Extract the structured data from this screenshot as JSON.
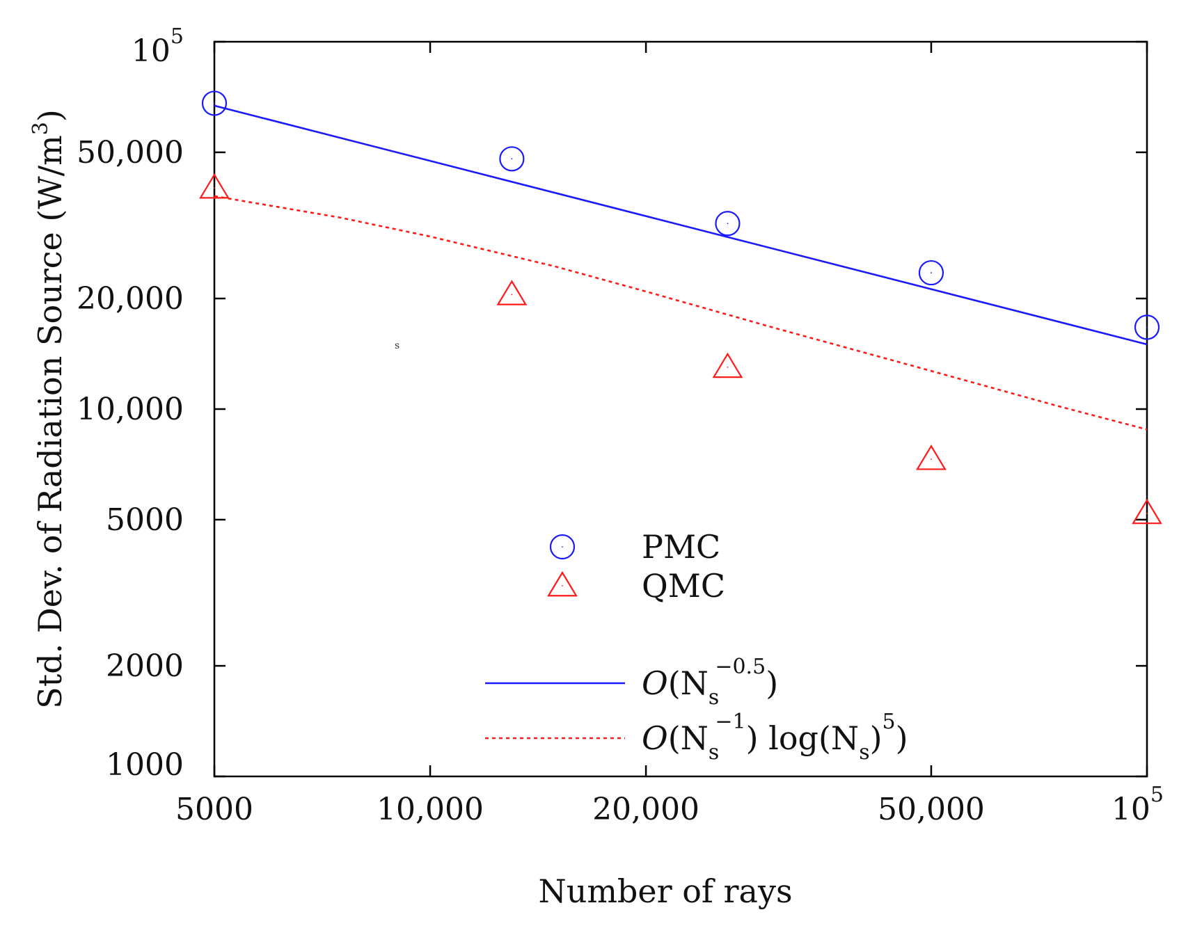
{
  "chart_data": {
    "type": "scatter",
    "title": "",
    "xlabel": "Number of rays",
    "ylabel": "Std. Dev. of Radiation Source (W/m",
    "ylabel_sup": "3",
    "ylabel_end": ")",
    "xscale": "log",
    "yscale": "log",
    "xlim": [
      5000,
      100000
    ],
    "ylim": [
      1000,
      100000
    ],
    "x_ticks": [
      {
        "value": 5000,
        "label": "5000",
        "sup": ""
      },
      {
        "value": 10000,
        "label": "10,000",
        "sup": ""
      },
      {
        "value": 20000,
        "label": "20,000",
        "sup": ""
      },
      {
        "value": 50000,
        "label": "50,000",
        "sup": ""
      },
      {
        "value": 100000,
        "label": "10",
        "sup": "5"
      }
    ],
    "y_ticks": [
      {
        "value": 1000,
        "label": "1000",
        "sup": ""
      },
      {
        "value": 2000,
        "label": "2000",
        "sup": ""
      },
      {
        "value": 5000,
        "label": "5000",
        "sup": ""
      },
      {
        "value": 10000,
        "label": "10,000",
        "sup": ""
      },
      {
        "value": 20000,
        "label": "20,000",
        "sup": ""
      },
      {
        "value": 50000,
        "label": "50,000",
        "sup": ""
      },
      {
        "value": 100000,
        "label": "10",
        "sup": "5"
      }
    ],
    "series": [
      {
        "name": "PMC",
        "kind": "markers",
        "marker": "circle",
        "color": "#1a1aff",
        "points": [
          {
            "x": 5000,
            "y": 68000
          },
          {
            "x": 13000,
            "y": 48000
          },
          {
            "x": 26000,
            "y": 32000
          },
          {
            "x": 50000,
            "y": 23500
          },
          {
            "x": 100000,
            "y": 16700
          }
        ]
      },
      {
        "name": "QMC",
        "kind": "markers",
        "marker": "triangle",
        "color": "#ff1a1a",
        "points": [
          {
            "x": 5000,
            "y": 40000
          },
          {
            "x": 13000,
            "y": 20500
          },
          {
            "x": 26000,
            "y": 13000
          },
          {
            "x": 50000,
            "y": 7300
          },
          {
            "x": 100000,
            "y": 5200
          }
        ]
      },
      {
        "name": "O(Ns^-0.5)",
        "kind": "line",
        "style": "solid",
        "color": "#1a1aff",
        "legend": {
          "lead": "O",
          "paren": "(N",
          "sub": "s",
          "sup": "−0.5",
          "close": ")"
        },
        "points": [
          {
            "x": 5000,
            "y": 67000
          },
          {
            "x": 100000,
            "y": 15000
          }
        ]
      },
      {
        "name": "O(Ns^-1) log(Ns)^5",
        "kind": "line",
        "style": "dotted",
        "color": "#ff1a1a",
        "legend": {
          "lead": "O",
          "paren": "(N",
          "sub": "s",
          "sup": "−1",
          "close": ") log(N",
          "sub2": "s",
          "close2": ")",
          "sup2": "5",
          "close3": ")"
        },
        "points": [
          {
            "x": 5000,
            "y": 38000
          },
          {
            "x": 7500,
            "y": 33200
          },
          {
            "x": 10000,
            "y": 29500
          },
          {
            "x": 15000,
            "y": 24400
          },
          {
            "x": 20000,
            "y": 20900
          },
          {
            "x": 30000,
            "y": 16700
          },
          {
            "x": 50000,
            "y": 12700
          },
          {
            "x": 75000,
            "y": 10200
          },
          {
            "x": 100000,
            "y": 8800
          }
        ]
      }
    ],
    "stray_text": "s",
    "legend_position": "center-bottom"
  }
}
